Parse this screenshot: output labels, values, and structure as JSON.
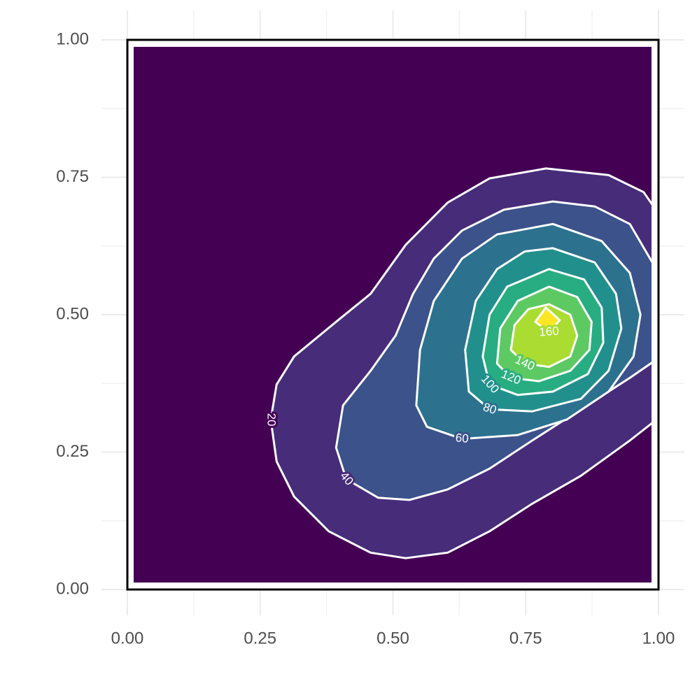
{
  "chart_data": {
    "type": "contour",
    "xlim": [
      0,
      1
    ],
    "ylim": [
      0,
      1
    ],
    "xticks": [
      {
        "value": 0,
        "label": "0.00"
      },
      {
        "value": 0.25,
        "label": "0.25"
      },
      {
        "value": 0.5,
        "label": "0.50"
      },
      {
        "value": 0.75,
        "label": "0.75"
      },
      {
        "value": 1,
        "label": "1.00"
      }
    ],
    "yticks": [
      {
        "value": 0,
        "label": "0.00"
      },
      {
        "value": 0.25,
        "label": "0.25"
      },
      {
        "value": 0.5,
        "label": "0.50"
      },
      {
        "value": 0.75,
        "label": "0.75"
      },
      {
        "value": 1,
        "label": "1.00"
      }
    ],
    "xminor": [
      0.125,
      0.375,
      0.625,
      0.875
    ],
    "yminor": [
      0.125,
      0.375,
      0.625,
      0.875
    ],
    "grid": true,
    "background_color": "#440154",
    "contours": [
      {
        "level": 20,
        "color": "#472c7a",
        "closed": false,
        "x": [
          1.0,
          0.972,
          0.906,
          0.788,
          0.682,
          0.603,
          0.524,
          0.458,
          0.393,
          0.314,
          0.281,
          0.27,
          0.281,
          0.314,
          0.379,
          0.458,
          0.524,
          0.603,
          0.682,
          0.762,
          0.854,
          0.946,
          1.0
        ],
        "y": [
          0.684,
          0.723,
          0.754,
          0.766,
          0.748,
          0.704,
          0.627,
          0.538,
          0.487,
          0.424,
          0.373,
          0.309,
          0.233,
          0.169,
          0.106,
          0.067,
          0.057,
          0.067,
          0.106,
          0.156,
          0.207,
          0.271,
          0.312
        ]
      },
      {
        "level": 40,
        "color": "#3b528b",
        "closed": false,
        "x": [
          1.0,
          0.946,
          0.88,
          0.801,
          0.709,
          0.63,
          0.577,
          0.538,
          0.505,
          0.458,
          0.406,
          0.393,
          0.412,
          0.472,
          0.531,
          0.603,
          0.682,
          0.762,
          0.854,
          0.946,
          1.0
        ],
        "y": [
          0.576,
          0.665,
          0.697,
          0.706,
          0.691,
          0.653,
          0.602,
          0.538,
          0.462,
          0.398,
          0.335,
          0.258,
          0.201,
          0.167,
          0.163,
          0.182,
          0.22,
          0.271,
          0.328,
          0.385,
          0.421
        ]
      },
      {
        "level": 60,
        "color": "#2c728e",
        "closed": true,
        "x": [
          0.801,
          0.893,
          0.946,
          0.966,
          0.953,
          0.906,
          0.827,
          0.735,
          0.63,
          0.564,
          0.544,
          0.551,
          0.577,
          0.63,
          0.696
        ],
        "y": [
          0.665,
          0.634,
          0.576,
          0.5,
          0.424,
          0.36,
          0.309,
          0.281,
          0.274,
          0.296,
          0.335,
          0.436,
          0.525,
          0.602,
          0.646
        ]
      },
      {
        "level": 80,
        "color": "#21908d",
        "closed": true,
        "x": [
          0.801,
          0.88,
          0.92,
          0.93,
          0.906,
          0.854,
          0.762,
          0.682,
          0.643,
          0.636,
          0.656,
          0.696,
          0.748
        ],
        "y": [
          0.621,
          0.595,
          0.538,
          0.475,
          0.398,
          0.347,
          0.324,
          0.328,
          0.36,
          0.436,
          0.525,
          0.583,
          0.615
        ]
      },
      {
        "level": 100,
        "color": "#27ad81",
        "closed": true,
        "x": [
          0.794,
          0.86,
          0.893,
          0.896,
          0.867,
          0.801,
          0.735,
          0.682,
          0.669,
          0.682,
          0.715
        ],
        "y": [
          0.583,
          0.564,
          0.513,
          0.449,
          0.392,
          0.36,
          0.354,
          0.373,
          0.424,
          0.5,
          0.551
        ]
      },
      {
        "level": 120,
        "color": "#5dc963",
        "closed": true,
        "x": [
          0.794,
          0.847,
          0.874,
          0.87,
          0.834,
          0.775,
          0.722,
          0.696,
          0.702,
          0.735
        ],
        "y": [
          0.551,
          0.532,
          0.487,
          0.436,
          0.398,
          0.379,
          0.385,
          0.411,
          0.475,
          0.525
        ]
      },
      {
        "level": 140,
        "color": "#aadc32",
        "closed": true,
        "x": [
          0.794,
          0.834,
          0.847,
          0.834,
          0.794,
          0.748,
          0.722,
          0.729,
          0.755
        ],
        "y": [
          0.519,
          0.5,
          0.462,
          0.424,
          0.405,
          0.411,
          0.436,
          0.481,
          0.51
        ]
      },
      {
        "level": 160,
        "color": "#fde725",
        "closed": true,
        "x": [
          0.788,
          0.814,
          0.794,
          0.768
        ],
        "y": [
          0.513,
          0.49,
          0.468,
          0.487
        ]
      }
    ]
  }
}
